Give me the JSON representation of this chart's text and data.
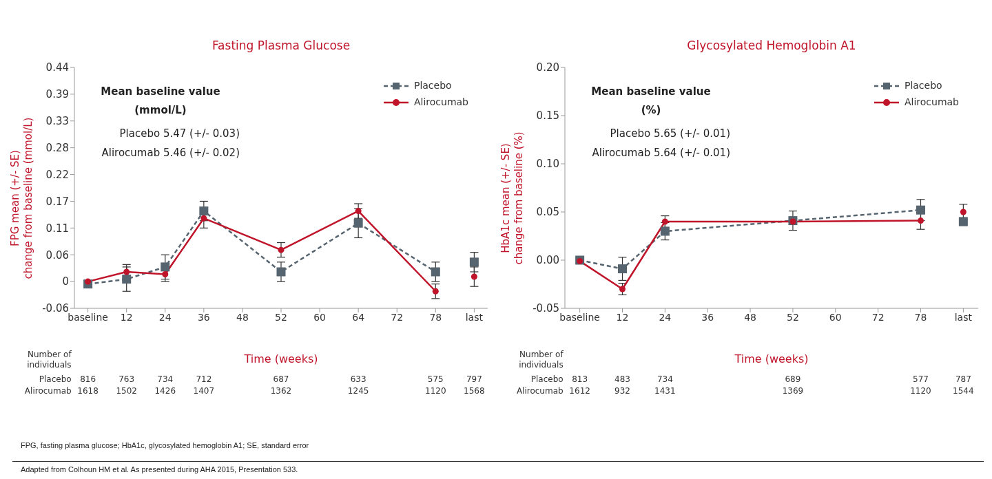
{
  "chart_data": [
    {
      "type": "line",
      "title": "Fasting Plasma Glucose",
      "xlabel": "Time (weeks)",
      "ylabel": "FPG mean (+/- SE)\nchange from baseline (mmol/L)",
      "categories": [
        "baseline",
        "12",
        "24",
        "36",
        "48",
        "52",
        "60",
        "64",
        "72",
        "78",
        "last"
      ],
      "ylim": [
        -0.055,
        0.44
      ],
      "yticks": [
        {
          "value": -0.055,
          "label": "-0.06"
        },
        0,
        {
          "value": 0.055,
          "label": "0.06"
        },
        0.11,
        {
          "value": 0.165,
          "label": "0.17"
        },
        0.22,
        {
          "value": 0.275,
          "label": "0.28"
        },
        0.33,
        {
          "value": 0.385,
          "label": "0.39"
        },
        0.44
      ],
      "legend": "top right",
      "series": [
        {
          "name": "Placebo",
          "color": "#56646f",
          "marker": "square",
          "line_style": "dashed",
          "values": [
            -0.005,
            0.005,
            0.03,
            0.145,
            null,
            0.02,
            null,
            0.12,
            null,
            0.02,
            null
          ],
          "errors": [
            null,
            0.025,
            0.025,
            0.02,
            null,
            0.02,
            null,
            0.03,
            null,
            0.02,
            null
          ]
        },
        {
          "name": "Alirocumab",
          "color": "#c0142a",
          "marker": "circle",
          "line_style": "solid",
          "values": [
            0,
            0.02,
            0.015,
            0.13,
            null,
            0.065,
            null,
            0.145,
            null,
            -0.02,
            null
          ],
          "errors": [
            null,
            0.015,
            0.015,
            0.02,
            null,
            0.015,
            null,
            0.015,
            null,
            0.015,
            null
          ]
        },
        {
          "type": "scatter",
          "color": "#56646f",
          "marker": "square",
          "values": [
            null,
            null,
            null,
            null,
            null,
            null,
            null,
            null,
            null,
            null,
            0.04
          ],
          "errors": [
            null,
            null,
            null,
            null,
            null,
            null,
            null,
            null,
            null,
            null,
            0.02
          ]
        },
        {
          "type": "scatter",
          "color": "#c0142a",
          "marker": "circle",
          "values": [
            null,
            null,
            null,
            null,
            null,
            null,
            null,
            null,
            null,
            null,
            0.01
          ],
          "errors": [
            null,
            null,
            null,
            null,
            null,
            null,
            null,
            null,
            null,
            null,
            0.02
          ]
        }
      ],
      "annotations": [
        "Mean baseline value\n(mmol/L)",
        "Placebo 5.47 (+/- 0.03)",
        "Alirocumab 5.46 (+/- 0.02)",
        "Number of\nindividuals",
        "Placebo",
        "816",
        "763",
        "734",
        "712",
        "687",
        "633",
        "575",
        "797",
        "Alirocumab",
        "1618",
        "1502",
        "1426",
        "1407",
        "1362",
        "1245",
        "1120",
        "1568",
        "FPG, fasting plasma glucose; HbA1c, glycosylated hemoglobin A1; SE, standard error",
        "Adapted from Colhoun HM et al. As presented during AHA 2015, Presentation 533."
      ]
    },
    {
      "type": "line",
      "title": "Glycosylated Hemoglobin A1",
      "xlabel": "Time (weeks)",
      "ylabel": "HbA1c mean (+/- SE)\nchange from baseline (%)",
      "categories": [
        "baseline",
        "12",
        "24",
        "36",
        "48",
        "52",
        "60",
        "72",
        "78",
        "last"
      ],
      "ylim": [
        -0.05,
        0.2
      ],
      "yticks": [
        -0.05,
        {
          "value": 0,
          "label": "0.00"
        },
        0.05,
        {
          "value": 0.1,
          "label": "0.10"
        },
        0.15,
        {
          "value": 0.2,
          "label": "0.20"
        }
      ],
      "legend": "top right",
      "series": [
        {
          "name": "Placebo",
          "color": "#56646f",
          "marker": "square",
          "line_style": "dashed",
          "values": [
            0,
            -0.009,
            0.03,
            null,
            null,
            0.041,
            null,
            null,
            0.052,
            null
          ],
          "errors": [
            null,
            0.012,
            0.009,
            null,
            null,
            0.01,
            null,
            null,
            0.011,
            null
          ]
        },
        {
          "name": "Alirocumab",
          "color": "#c0142a",
          "marker": "circle",
          "line_style": "solid",
          "values": [
            -0.001,
            -0.03,
            0.04,
            null,
            null,
            0.04,
            null,
            null,
            0.041,
            null
          ],
          "errors": [
            null,
            0.006,
            0.006,
            null,
            null,
            null,
            null,
            null,
            0.009,
            null
          ]
        },
        {
          "type": "scatter",
          "color": "#56646f",
          "marker": "square",
          "values": [
            null,
            null,
            null,
            null,
            null,
            null,
            null,
            null,
            null,
            0.04
          ],
          "errors": [
            null,
            null,
            null,
            null,
            null,
            null,
            null,
            null,
            null,
            0.004
          ]
        },
        {
          "type": "scatter",
          "color": "#c0142a",
          "marker": "circle",
          "values": [
            null,
            null,
            null,
            null,
            null,
            null,
            null,
            null,
            null,
            0.05
          ],
          "errors": [
            null,
            null,
            null,
            null,
            null,
            null,
            null,
            null,
            null,
            0.008
          ]
        }
      ],
      "annotations": [
        "Mean baseline value\n(%)",
        "Placebo 5.65 (+/- 0.01)",
        "Alirocumab 5.64 (+/- 0.01)",
        "Number of\nindividuals",
        "Placebo",
        "813",
        "483",
        "734",
        "689",
        "577",
        "787",
        "Alirocumab",
        "1612",
        "932",
        "1431",
        "1369",
        "1120",
        "1544"
      ]
    }
  ]
}
